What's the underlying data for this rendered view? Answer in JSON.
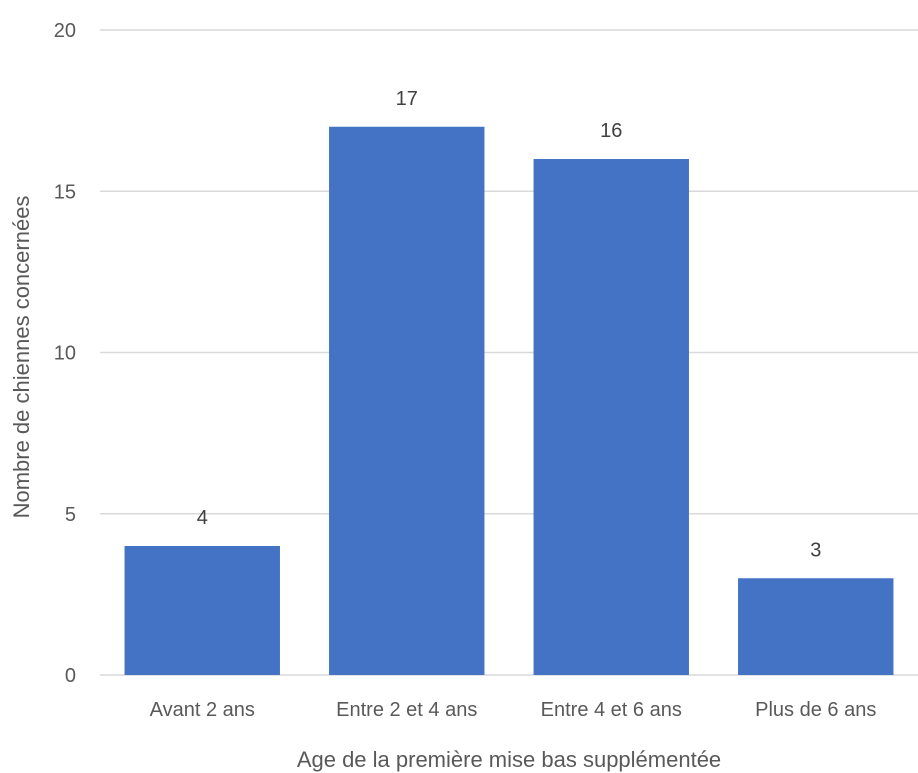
{
  "chart_data": {
    "type": "bar",
    "title": "",
    "xlabel": "Age de la première mise bas supplémentée",
    "ylabel": "Nombre de chiennes concernées",
    "categories": [
      "Avant 2 ans",
      "Entre 2 et 4 ans",
      "Entre 4 et 6 ans",
      "Plus de 6 ans"
    ],
    "values": [
      4,
      17,
      16,
      3
    ],
    "data_labels": [
      "4",
      "17",
      "16",
      "3"
    ],
    "ylim": [
      0,
      20
    ],
    "yticks": [
      0,
      5,
      10,
      15,
      20
    ],
    "ytick_labels": [
      "0",
      "5",
      "10",
      "15",
      "20"
    ],
    "grid": true,
    "legend": "none",
    "colors": {
      "bar": "#4472C4",
      "grid": "#D9D9D9",
      "text": "#595959"
    }
  }
}
